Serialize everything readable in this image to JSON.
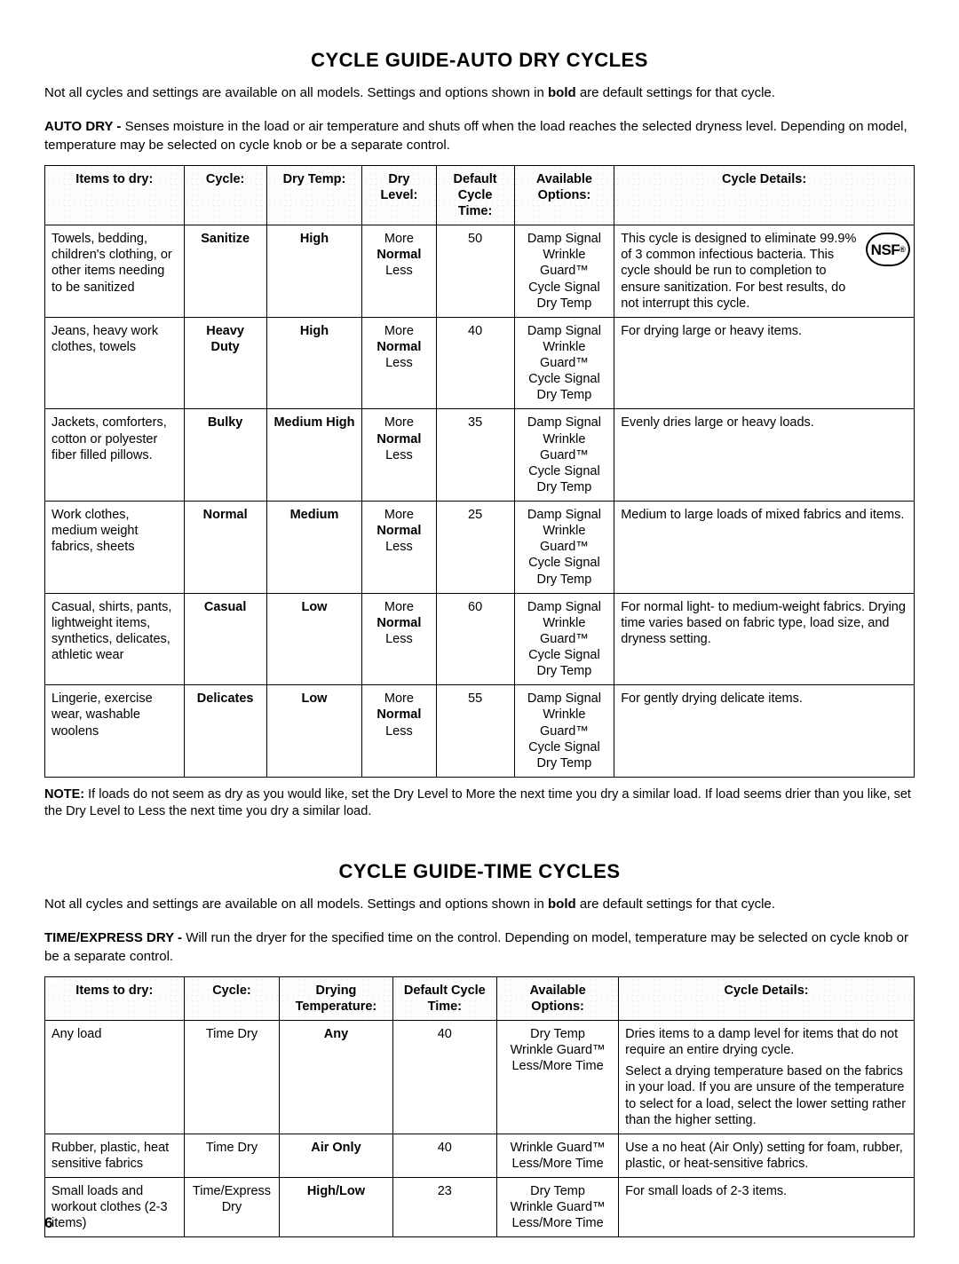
{
  "page_number": "6",
  "auto": {
    "title": "CYCLE GUIDE-AUTO DRY CYCLES",
    "intro_pre": "Not all cycles and settings are available on all models. Settings and options shown in ",
    "intro_bold": "bold",
    "intro_post": " are default settings for that cycle.",
    "sub_lead": "AUTO DRY - ",
    "sub_rest": "Senses moisture in the load or air temperature and shuts off when the load reaches the selected dryness level. Depending on model, temperature may be selected on cycle knob or be a separate control.",
    "headers": {
      "items": "Items to dry:",
      "cycle": "Cycle:",
      "temp": "Dry Temp:",
      "level": "Dry Level:",
      "time": "Default Cycle Time:",
      "options": "Available Options:",
      "details": "Cycle Details:"
    },
    "level_more": "More",
    "level_normal": "Normal",
    "level_less": "Less",
    "opt1": "Damp Signal",
    "opt2": "Wrinkle Guard™",
    "opt3": "Cycle Signal",
    "opt4": "Dry Temp",
    "nsf": "NSF",
    "nsf_reg": "®",
    "rows": [
      {
        "items": "Towels, bedding, children's clothing, or other items needing to be sanitized",
        "cycle": "Sanitize",
        "temp": "High",
        "time": "50",
        "details": "This cycle is designed to eliminate 99.9% of 3 common infectious bacteria. This cycle should be run to completion to ensure sanitization. For best results, do not interrupt this cycle.",
        "nsf": true
      },
      {
        "items": "Jeans, heavy work clothes, towels",
        "cycle": "Heavy Duty",
        "temp": "High",
        "time": "40",
        "details": "For drying large or heavy items."
      },
      {
        "items": "Jackets, comforters, cotton or polyester fiber filled pillows.",
        "cycle": "Bulky",
        "temp": "Medium High",
        "time": "35",
        "details": "Evenly dries large or heavy loads."
      },
      {
        "items": "Work clothes, medium weight fabrics, sheets",
        "cycle": "Normal",
        "temp": "Medium",
        "time": "25",
        "details": "Medium to large loads of mixed fabrics and items."
      },
      {
        "items": "Casual, shirts, pants, lightweight items, synthetics, delicates, athletic wear",
        "cycle": "Casual",
        "temp": "Low",
        "time": "60",
        "details": "For normal light- to medium-weight fabrics. Drying time varies based on fabric type, load size, and dryness setting."
      },
      {
        "items": "Lingerie, exercise wear, washable woolens",
        "cycle": "Delicates",
        "temp": "Low",
        "time": "55",
        "details": "For gently drying delicate items."
      }
    ],
    "note_lead": "NOTE:",
    "note_rest": " If loads do not seem as dry as you would like, set the Dry Level to More the next time you dry a similar load. If load seems drier than you like, set the Dry Level to Less the next time you dry a similar load."
  },
  "time": {
    "title": "CYCLE GUIDE-TIME CYCLES",
    "intro_pre": "Not all cycles and settings are available on all models. Settings and options shown in ",
    "intro_bold": "bold",
    "intro_post": " are default settings for that cycle.",
    "sub_lead": "TIME/EXPRESS DRY - ",
    "sub_rest": "Will run the dryer for the specified time on the control. Depending on model, temperature may be selected on cycle knob or be a separate control.",
    "headers": {
      "items": "Items to dry:",
      "cycle": "Cycle:",
      "temp": "Drying Temperature:",
      "time": "Default Cycle Time:",
      "options": "Available Options:",
      "details": "Cycle Details:"
    },
    "rows": [
      {
        "items": "Any load",
        "cycle": "Time Dry",
        "temp": "Any",
        "time": "40",
        "opts": [
          "Dry Temp",
          "Wrinkle Guard™",
          "Less/More Time"
        ],
        "detail1": "Dries items to a damp level for items that do not require an entire drying cycle.",
        "detail2": "Select a drying temperature based on the fabrics in your load. If you are unsure of the temperature to select for a load, select the lower setting rather than the higher setting."
      },
      {
        "items": "Rubber, plastic, heat sensitive fabrics",
        "cycle": "Time Dry",
        "temp": "Air Only",
        "time": "40",
        "opts": [
          "Wrinkle Guard™",
          "Less/More Time"
        ],
        "detail1": "Use a no heat (Air Only) setting for foam, rubber, plastic, or heat-sensitive fabrics."
      },
      {
        "items": "Small loads and workout clothes (2-3 items)",
        "cycle": "Time/Express Dry",
        "temp": "High/Low",
        "time": "23",
        "opts": [
          "Dry Temp",
          "Wrinkle Guard™",
          "Less/More Time"
        ],
        "detail1": "For small loads of 2-3 items."
      }
    ]
  }
}
